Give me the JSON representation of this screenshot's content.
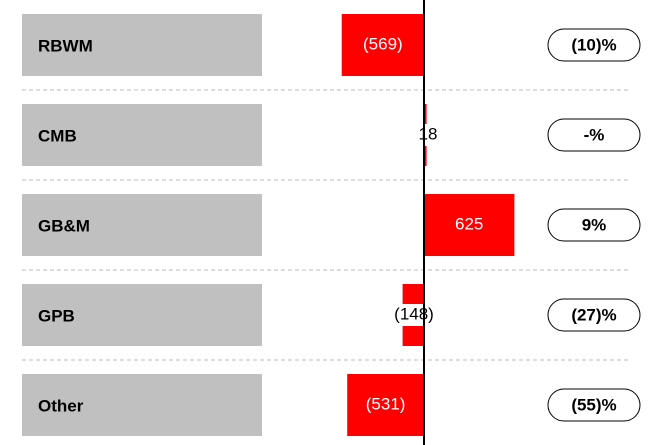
{
  "chart_data": {
    "type": "bar",
    "orientation": "horizontal",
    "categories": [
      "RBWM",
      "CMB",
      "GB&M",
      "GPB",
      "Other"
    ],
    "values": [
      -569,
      18,
      625,
      -148,
      -531
    ],
    "value_labels": [
      "(569)",
      "18",
      "625",
      "(148)",
      "(531)"
    ],
    "changes": [
      "(10)%",
      "-%",
      "9%",
      "(27)%",
      "(55)%"
    ],
    "color": "#ff0000",
    "xlim": [
      -650,
      650
    ]
  }
}
